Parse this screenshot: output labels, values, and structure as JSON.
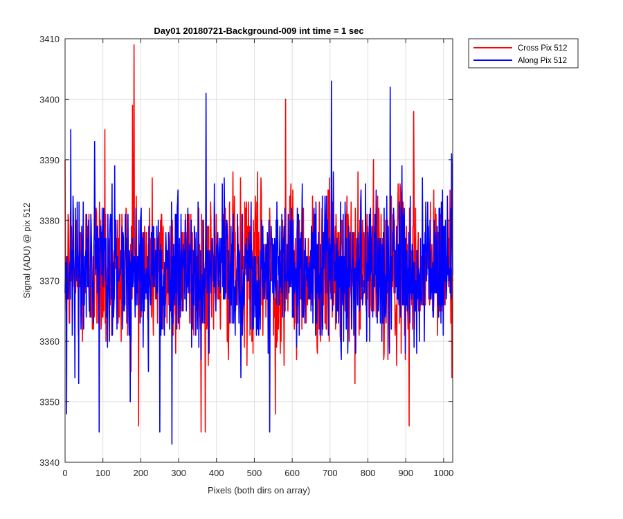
{
  "chart_data": {
    "type": "line",
    "title": "Day01 20180721-Background-009 int time = 1 sec",
    "xlabel": "Pixels (both dirs on array)",
    "ylabel": "Signal (ADU) @ pix 512",
    "xlim": [
      0,
      1024
    ],
    "ylim": [
      3340,
      3410
    ],
    "xticks": [
      0,
      100,
      200,
      300,
      400,
      500,
      600,
      700,
      800,
      900,
      1000
    ],
    "yticks": [
      3340,
      3350,
      3360,
      3370,
      3380,
      3390,
      3400,
      3410
    ],
    "grid": true,
    "legend_position": "outside-top-right",
    "series": [
      {
        "name": "Cross Pix 512",
        "color": "#ff0000",
        "mean": 3372,
        "noise_sigma": 6.5,
        "n_points": 1024,
        "peaks": [
          {
            "x": 182,
            "y": 3409
          },
          {
            "x": 178,
            "y": 3399
          },
          {
            "x": 582,
            "y": 3400
          },
          {
            "x": 105,
            "y": 3395
          },
          {
            "x": 370,
            "y": 3345
          },
          {
            "x": 555,
            "y": 3348
          },
          {
            "x": 908,
            "y": 3346
          },
          {
            "x": 920,
            "y": 3398
          }
        ]
      },
      {
        "name": "Along Pix 512",
        "color": "#0000ff",
        "mean": 3372,
        "noise_sigma": 6.0,
        "n_points": 1024,
        "peaks": [
          {
            "x": 372,
            "y": 3401
          },
          {
            "x": 703,
            "y": 3403
          },
          {
            "x": 858,
            "y": 3402
          },
          {
            "x": 15,
            "y": 3395
          },
          {
            "x": 4,
            "y": 3348
          },
          {
            "x": 90,
            "y": 3345
          },
          {
            "x": 250,
            "y": 3345
          },
          {
            "x": 282,
            "y": 3343
          },
          {
            "x": 540,
            "y": 3345
          },
          {
            "x": 1020,
            "y": 3391
          }
        ]
      }
    ]
  },
  "legend": {
    "items": [
      {
        "label": "Cross Pix 512",
        "color": "#ff0000"
      },
      {
        "label": "Along Pix 512",
        "color": "#0000ff"
      }
    ]
  }
}
